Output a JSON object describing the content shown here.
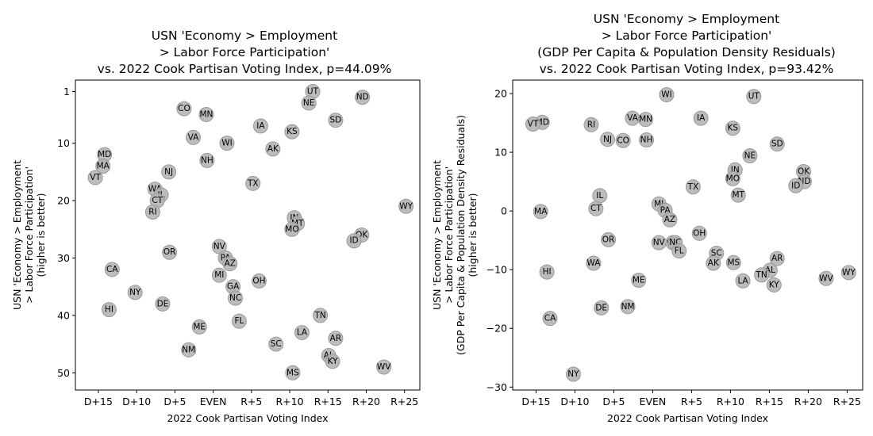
{
  "chart_data": [
    {
      "type": "scatter",
      "title": [
        "USN 'Economy > Employment",
        "> Labor Force Participation'",
        "vs. 2022 Cook Partisan Voting Index, p=44.09%"
      ],
      "xlabel": "2022 Cook Partisan Voting Index",
      "ylabel": [
        "USN 'Economy > Employment",
        "> Labor Force Participation'",
        "(higher is better)"
      ],
      "xlim": [
        -18,
        27
      ],
      "ylim": [
        53,
        -1
      ],
      "y_inverted": true,
      "xticks": [
        {
          "v": -15,
          "label": "D+15"
        },
        {
          "v": -10,
          "label": "D+10"
        },
        {
          "v": -5,
          "label": "D+5"
        },
        {
          "v": 0,
          "label": "EVEN"
        },
        {
          "v": 5,
          "label": "R+5"
        },
        {
          "v": 10,
          "label": "R+10"
        },
        {
          "v": 15,
          "label": "R+15"
        },
        {
          "v": 20,
          "label": "R+20"
        },
        {
          "v": 25,
          "label": "R+25"
        }
      ],
      "yticks": [
        {
          "v": 1,
          "label": "1"
        },
        {
          "v": 10,
          "label": "10"
        },
        {
          "v": 20,
          "label": "20"
        },
        {
          "v": 30,
          "label": "30"
        },
        {
          "v": 40,
          "label": "40"
        },
        {
          "v": 50,
          "label": "50"
        }
      ],
      "points": [
        {
          "label": "UT",
          "x": 13,
          "y": 1
        },
        {
          "label": "ND",
          "x": 19.5,
          "y": 2
        },
        {
          "label": "NE",
          "x": 12.5,
          "y": 3
        },
        {
          "label": "CO",
          "x": -3.8,
          "y": 4
        },
        {
          "label": "MN",
          "x": -0.9,
          "y": 5
        },
        {
          "label": "SD",
          "x": 16,
          "y": 6
        },
        {
          "label": "IA",
          "x": 6.2,
          "y": 7
        },
        {
          "label": "KS",
          "x": 10.3,
          "y": 8
        },
        {
          "label": "VA",
          "x": -2.6,
          "y": 9
        },
        {
          "label": "WI",
          "x": 1.8,
          "y": 10
        },
        {
          "label": "AK",
          "x": 7.8,
          "y": 11
        },
        {
          "label": "MD",
          "x": -14.2,
          "y": 12
        },
        {
          "label": "NH",
          "x": -0.8,
          "y": 13
        },
        {
          "label": "MA",
          "x": -14.4,
          "y": 14
        },
        {
          "label": "NJ",
          "x": -5.8,
          "y": 15
        },
        {
          "label": "VT",
          "x": -15.4,
          "y": 16
        },
        {
          "label": "TX",
          "x": 5.2,
          "y": 17
        },
        {
          "label": "WA",
          "x": -7.6,
          "y": 18
        },
        {
          "label": "IL",
          "x": -6.8,
          "y": 19
        },
        {
          "label": "CT",
          "x": -7.3,
          "y": 20
        },
        {
          "label": "WY",
          "x": 25.2,
          "y": 21
        },
        {
          "label": "RI",
          "x": -7.9,
          "y": 22
        },
        {
          "label": "IN",
          "x": 10.6,
          "y": 23
        },
        {
          "label": "MT",
          "x": 11,
          "y": 24
        },
        {
          "label": "MO",
          "x": 10.3,
          "y": 25
        },
        {
          "label": "OK",
          "x": 19.4,
          "y": 26
        },
        {
          "label": "ID",
          "x": 18.4,
          "y": 27
        },
        {
          "label": "NV",
          "x": 0.8,
          "y": 28
        },
        {
          "label": "OR",
          "x": -5.7,
          "y": 29
        },
        {
          "label": "PA",
          "x": 1.6,
          "y": 30
        },
        {
          "label": "AZ",
          "x": 2.2,
          "y": 31
        },
        {
          "label": "CA",
          "x": -13.2,
          "y": 32
        },
        {
          "label": "MI",
          "x": 0.8,
          "y": 33
        },
        {
          "label": "OH",
          "x": 6,
          "y": 34
        },
        {
          "label": "GA",
          "x": 2.6,
          "y": 35
        },
        {
          "label": "NY",
          "x": -10.2,
          "y": 36
        },
        {
          "label": "NC",
          "x": 2.9,
          "y": 37
        },
        {
          "label": "DE",
          "x": -6.6,
          "y": 38
        },
        {
          "label": "HI",
          "x": -13.6,
          "y": 39
        },
        {
          "label": "TN",
          "x": 14,
          "y": 40
        },
        {
          "label": "FL",
          "x": 3.4,
          "y": 41
        },
        {
          "label": "ME",
          "x": -1.8,
          "y": 42
        },
        {
          "label": "LA",
          "x": 11.6,
          "y": 43
        },
        {
          "label": "AR",
          "x": 16,
          "y": 44
        },
        {
          "label": "SC",
          "x": 8.2,
          "y": 45
        },
        {
          "label": "NM",
          "x": -3.2,
          "y": 46
        },
        {
          "label": "AL",
          "x": 15.1,
          "y": 47
        },
        {
          "label": "KY",
          "x": 15.6,
          "y": 48
        },
        {
          "label": "WV",
          "x": 22.3,
          "y": 49
        },
        {
          "label": "MS",
          "x": 10.4,
          "y": 50
        }
      ]
    },
    {
      "type": "scatter",
      "title": [
        "USN 'Economy > Employment",
        "> Labor Force Participation'",
        "(GDP Per Capita & Population Density Residuals)",
        "vs. 2022 Cook Partisan Voting Index, p=93.42%"
      ],
      "xlabel": "2022 Cook Partisan Voting Index",
      "ylabel": [
        "USN 'Economy > Employment",
        "> Labor Force Participation'",
        "(GDP Per Capita & Population Density Residuals)",
        "(higher is better)"
      ],
      "xlim": [
        -18,
        27
      ],
      "ylim": [
        -30.5,
        22.3
      ],
      "y_inverted": false,
      "xticks": [
        {
          "v": -15,
          "label": "D+15"
        },
        {
          "v": -10,
          "label": "D+10"
        },
        {
          "v": -5,
          "label": "D+5"
        },
        {
          "v": 0,
          "label": "EVEN"
        },
        {
          "v": 5,
          "label": "R+5"
        },
        {
          "v": 10,
          "label": "R+10"
        },
        {
          "v": 15,
          "label": "R+15"
        },
        {
          "v": 20,
          "label": "R+20"
        },
        {
          "v": 25,
          "label": "R+25"
        }
      ],
      "yticks": [
        {
          "v": 20,
          "label": "20"
        },
        {
          "v": 10,
          "label": "10"
        },
        {
          "v": 0,
          "label": "0"
        },
        {
          "v": -10,
          "label": "−10"
        },
        {
          "v": -20,
          "label": "−20"
        },
        {
          "v": -30,
          "label": "−30"
        }
      ],
      "points": [
        {
          "label": "WI",
          "x": 1.8,
          "y": 19.8
        },
        {
          "label": "UT",
          "x": 13,
          "y": 19.5
        },
        {
          "label": "VA",
          "x": -2.6,
          "y": 15.8
        },
        {
          "label": "MN",
          "x": -0.9,
          "y": 15.6
        },
        {
          "label": "IA",
          "x": 6.2,
          "y": 15.8
        },
        {
          "label": "MD",
          "x": -14.2,
          "y": 15.1
        },
        {
          "label": "VT",
          "x": -15.4,
          "y": 14.8
        },
        {
          "label": "RI",
          "x": -7.9,
          "y": 14.7
        },
        {
          "label": "KS",
          "x": 10.3,
          "y": 14.1
        },
        {
          "label": "NJ",
          "x": -5.8,
          "y": 12.2
        },
        {
          "label": "CO",
          "x": -3.8,
          "y": 12.0
        },
        {
          "label": "NH",
          "x": -0.8,
          "y": 12.1
        },
        {
          "label": "SD",
          "x": 16,
          "y": 11.4
        },
        {
          "label": "NE",
          "x": 12.5,
          "y": 9.4
        },
        {
          "label": "IN",
          "x": 10.6,
          "y": 7.0
        },
        {
          "label": "OK",
          "x": 19.4,
          "y": 6.7
        },
        {
          "label": "MO",
          "x": 10.3,
          "y": 5.5
        },
        {
          "label": "ND",
          "x": 19.5,
          "y": 5.0
        },
        {
          "label": "ID",
          "x": 18.4,
          "y": 4.3
        },
        {
          "label": "TX",
          "x": 5.2,
          "y": 4.1
        },
        {
          "label": "IL",
          "x": -6.8,
          "y": 2.6
        },
        {
          "label": "MT",
          "x": 11,
          "y": 2.7
        },
        {
          "label": "MI",
          "x": 0.8,
          "y": 1.2
        },
        {
          "label": "CT",
          "x": -7.3,
          "y": 0.4
        },
        {
          "label": "PA",
          "x": 1.6,
          "y": 0.1
        },
        {
          "label": "MA",
          "x": -14.4,
          "y": -0.1
        },
        {
          "label": "AZ",
          "x": 2.2,
          "y": -1.5
        },
        {
          "label": "OH",
          "x": 6,
          "y": -3.8
        },
        {
          "label": "OR",
          "x": -5.7,
          "y": -4.9
        },
        {
          "label": "NV",
          "x": 0.8,
          "y": -5.4
        },
        {
          "label": "GA",
          "x": 2.6,
          "y": -5.4
        },
        {
          "label": "NC",
          "x": 2.9,
          "y": -5.4
        },
        {
          "label": "FL",
          "x": 3.4,
          "y": -6.8
        },
        {
          "label": "SC",
          "x": 8.2,
          "y": -7.2
        },
        {
          "label": "AR",
          "x": 16,
          "y": -8.1
        },
        {
          "label": "AK",
          "x": 7.8,
          "y": -8.9
        },
        {
          "label": "MS",
          "x": 10.4,
          "y": -8.8
        },
        {
          "label": "WA",
          "x": -7.6,
          "y": -8.9
        },
        {
          "label": "AL",
          "x": 15.1,
          "y": -10.1
        },
        {
          "label": "HI",
          "x": -13.6,
          "y": -10.4
        },
        {
          "label": "WY",
          "x": 25.2,
          "y": -10.5
        },
        {
          "label": "TN",
          "x": 14,
          "y": -10.9
        },
        {
          "label": "WV",
          "x": 22.3,
          "y": -11.5
        },
        {
          "label": "ME",
          "x": -1.8,
          "y": -11.8
        },
        {
          "label": "LA",
          "x": 11.6,
          "y": -11.9
        },
        {
          "label": "KY",
          "x": 15.6,
          "y": -12.6
        },
        {
          "label": "NM",
          "x": -3.2,
          "y": -16.3
        },
        {
          "label": "DE",
          "x": -6.6,
          "y": -16.5
        },
        {
          "label": "CA",
          "x": -13.2,
          "y": -18.3
        },
        {
          "label": "NY",
          "x": -10.2,
          "y": -27.8
        }
      ]
    }
  ]
}
